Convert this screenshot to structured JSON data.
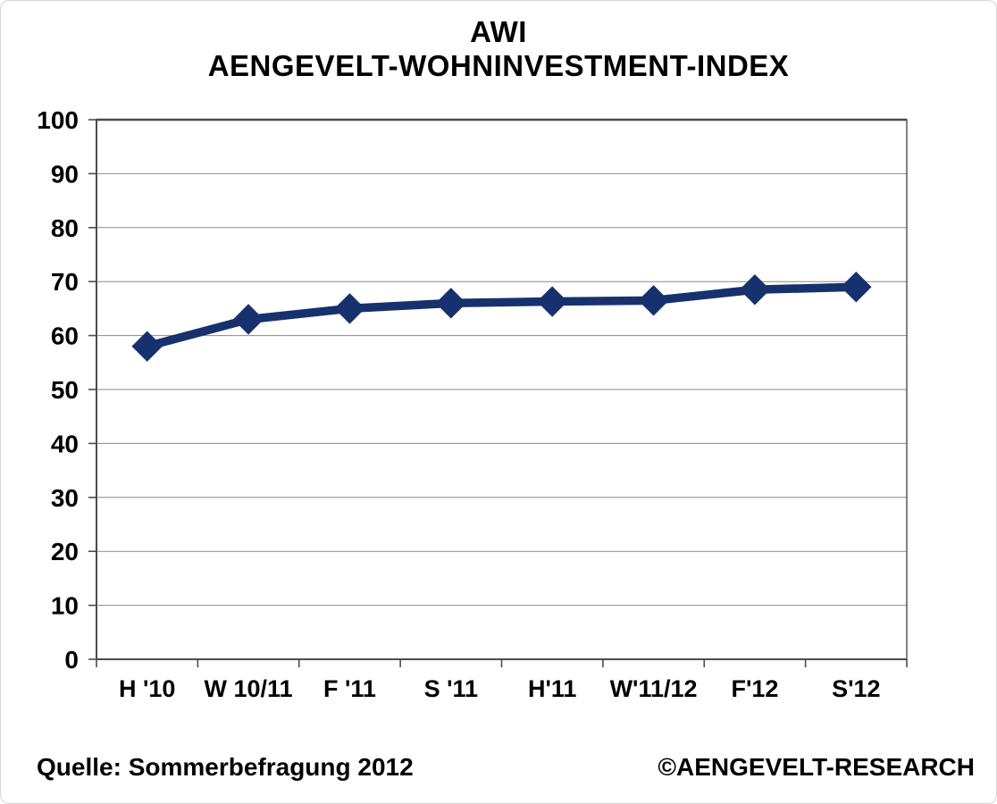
{
  "page": {
    "title_line1": "AWI",
    "title_line2": "AENGEVELT-WOHNINVESTMENT-INDEX",
    "footer": {
      "source": "Quelle: Sommerbefragung 2012",
      "copyright": "©AENGEVELT-RESEARCH"
    }
  },
  "colors": {
    "line": "#16316d",
    "marker": "#16316d",
    "grid": "#8a8a8a",
    "axis": "#4c4c4e",
    "text": "#000000",
    "background": "#ffffff"
  },
  "chart_data": {
    "type": "line",
    "title": "AWI AENGEVELT-WOHNINVESTMENT-INDEX",
    "categories": [
      "H '10",
      "W 10/11",
      "F '11",
      "S '11",
      "H'11",
      "W'11/12",
      "F'12",
      "S'12"
    ],
    "series": [
      {
        "name": "AWI",
        "values": [
          58,
          63,
          65,
          66,
          66.3,
          66.5,
          68.5,
          69
        ]
      }
    ],
    "ylim": [
      0,
      100
    ],
    "yticks": [
      0,
      10,
      20,
      30,
      40,
      50,
      60,
      70,
      80,
      90,
      100
    ],
    "xlabel": "",
    "ylabel": "",
    "grid": "horizontal",
    "legend": "none",
    "marker": "diamond"
  }
}
